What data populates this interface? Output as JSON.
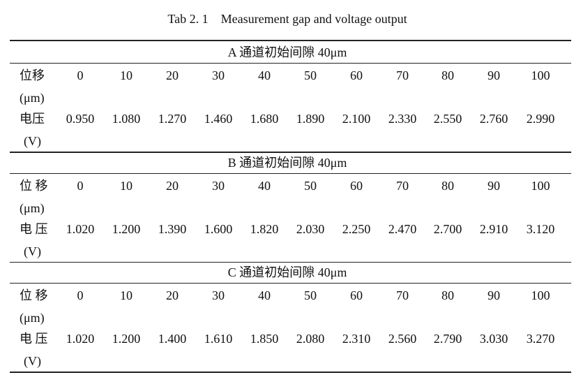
{
  "title": "Tab 2. 1    Measurement gap and voltage output",
  "sections": [
    {
      "header": "A 通道初始间隙 40μm",
      "displacement_label": "位移",
      "displacement_unit": "(μm)",
      "displacement": [
        "0",
        "10",
        "20",
        "30",
        "40",
        "50",
        "60",
        "70",
        "80",
        "90",
        "100"
      ],
      "voltage_label": "电压",
      "voltage_unit": "(V)",
      "voltage": [
        "0.950",
        "1.080",
        "1.270",
        "1.460",
        "1.680",
        "1.890",
        "2.100",
        "2.330",
        "2.550",
        "2.760",
        "2.990"
      ]
    },
    {
      "header": "B 通道初始间隙 40μm",
      "displacement_label": "位 移",
      "displacement_unit": "(μm)",
      "displacement": [
        "0",
        "10",
        "20",
        "30",
        "40",
        "50",
        "60",
        "70",
        "80",
        "90",
        "100"
      ],
      "voltage_label": "电 压",
      "voltage_unit": "(V)",
      "voltage": [
        "1.020",
        "1.200",
        "1.390",
        "1.600",
        "1.820",
        "2.030",
        "2.250",
        "2.470",
        "2.700",
        "2.910",
        "3.120"
      ]
    },
    {
      "header": "C 通道初始间隙 40μm",
      "displacement_label": "位 移",
      "displacement_unit": "(μm)",
      "displacement": [
        "0",
        "10",
        "20",
        "30",
        "40",
        "50",
        "60",
        "70",
        "80",
        "90",
        "100"
      ],
      "voltage_label": "电 压",
      "voltage_unit": "(V)",
      "voltage": [
        "1.020",
        "1.200",
        "1.400",
        "1.610",
        "1.850",
        "2.080",
        "2.310",
        "2.560",
        "2.790",
        "3.030",
        "3.270"
      ]
    }
  ]
}
